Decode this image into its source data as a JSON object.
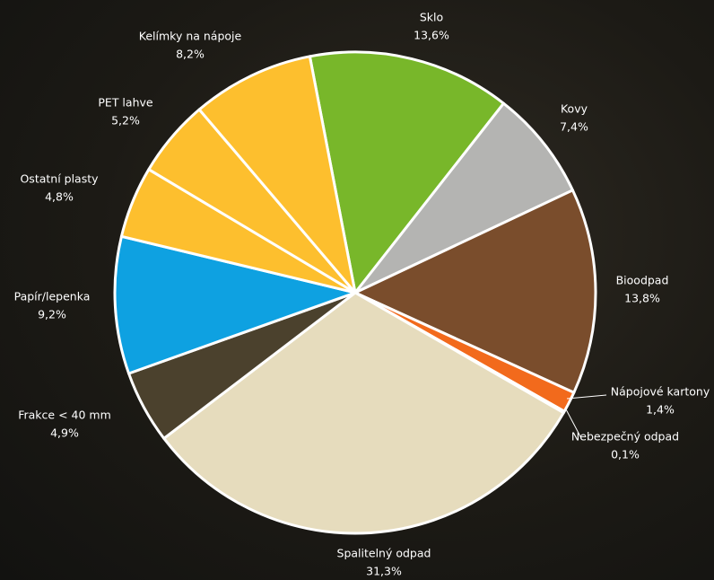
{
  "chart_data": {
    "type": "pie",
    "categories": [
      "Sklo",
      "Kovy",
      "Bioodpad",
      "Nápojové kartony",
      "Nebezpečný odpad",
      "Spalitelný odpad",
      "Frakce < 40 mm",
      "Papír/lepenka",
      "Ostatní plasty",
      "PET lahve",
      "Kelímky na nápoje"
    ],
    "values": [
      13.6,
      7.4,
      13.8,
      1.4,
      0.1,
      31.3,
      4.9,
      9.2,
      4.8,
      5.2,
      8.2
    ],
    "value_labels": [
      "13,6%",
      "7,4%",
      "13,8%",
      "1,4%",
      "0,1%",
      "31,3%",
      "4,9%",
      "9,2%",
      "4,8%",
      "5,2%",
      "8,2%"
    ],
    "colors": [
      "#78b72a",
      "#b4b4b2",
      "#7a4d2c",
      "#f26a1c",
      "#3a3528",
      "#e6dcbd",
      "#4b412d",
      "#0ea1e1",
      "#fdbf2e",
      "#fdbf2e",
      "#fdbf2e"
    ]
  }
}
